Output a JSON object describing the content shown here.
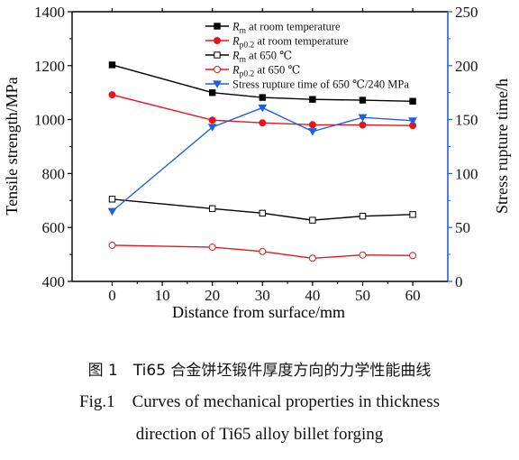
{
  "chart_data": {
    "type": "line",
    "x": [
      0,
      20,
      30,
      40,
      50,
      60
    ],
    "xlabel": "Distance from surface/mm",
    "x_ticks": [
      "0",
      "10",
      "20",
      "30",
      "40",
      "50",
      "60"
    ],
    "xlim": [
      -8,
      67
    ],
    "ylabel_left": "Tensile strength/MPa",
    "ylim_left": [
      400,
      1400
    ],
    "y_ticks_left": [
      "400",
      "600",
      "800",
      "1000",
      "1200",
      "1400"
    ],
    "ylabel_right": "Stress rupture time/h",
    "ylim_right": [
      0,
      250
    ],
    "y_ticks_right": [
      "0",
      "50",
      "100",
      "150",
      "200",
      "250"
    ],
    "legend_position": "top-right",
    "series": [
      {
        "name": "Rm at room temperature",
        "legend_main": "R",
        "legend_sub": "m",
        "legend_rest": " at room temperature",
        "axis": "left",
        "color": "#000000",
        "marker": "square-filled",
        "values": [
          1203,
          1100,
          1082,
          1075,
          1072,
          1068
        ]
      },
      {
        "name": "Rp0.2 at room temperature",
        "legend_main": "R",
        "legend_sub": "p0.2",
        "legend_rest": " at room temperature",
        "axis": "left",
        "color": "#e8141c",
        "marker": "circle-filled",
        "values": [
          1092,
          998,
          988,
          981,
          980,
          978
        ]
      },
      {
        "name": "Rm at 650 ℃",
        "legend_main": "R",
        "legend_sub": "m",
        "legend_rest": " at 650 ℃",
        "axis": "left",
        "color": "#000000",
        "marker": "square-open",
        "values": [
          705,
          670,
          653,
          627,
          642,
          648
        ]
      },
      {
        "name": "Rp0.2 at 650 ℃",
        "legend_main": "R",
        "legend_sub": "p0.2",
        "legend_rest": " at 650 ℃",
        "axis": "left",
        "color": "#e8141c",
        "marker": "circle-open",
        "values": [
          534,
          527,
          511,
          486,
          498,
          496
        ]
      },
      {
        "name": "Stress rupture time of 650 ℃/240 MPa",
        "legend_main": "",
        "legend_sub": "",
        "legend_rest": "Stress rupture time of 650 ℃/240 MPa",
        "axis": "right",
        "color": "#1f5fe0",
        "marker": "triangle-down",
        "values": [
          65,
          143,
          161,
          139,
          152,
          149
        ]
      }
    ]
  },
  "caption": {
    "chinese": "图 1　Ti65 合金饼坯锻件厚度方向的力学性能曲线",
    "english_line1": "Fig.1    Curves of mechanical properties in thickness",
    "english_line2": "direction of Ti65 alloy billet forging"
  }
}
